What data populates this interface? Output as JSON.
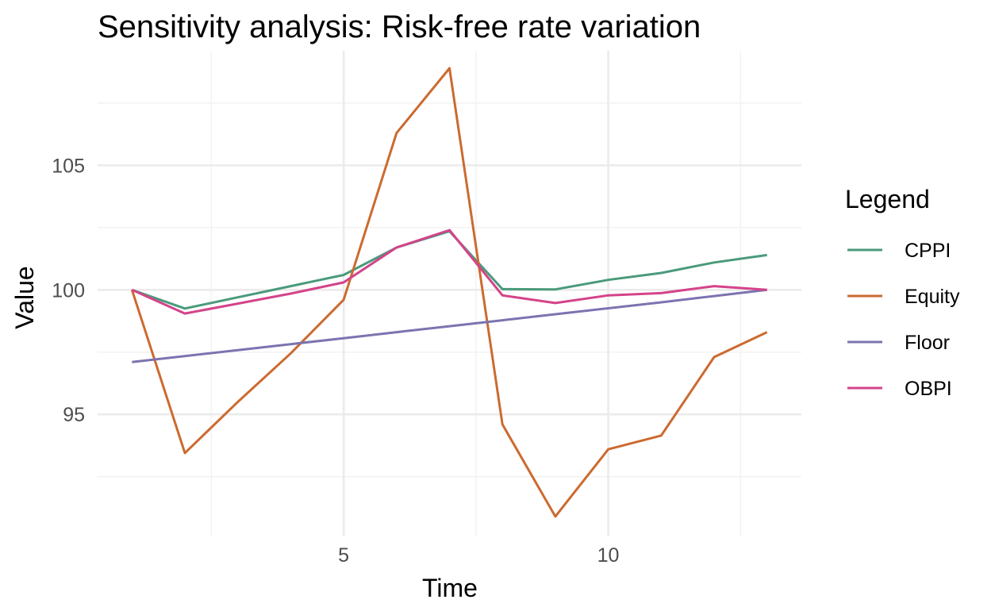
{
  "chart_data": {
    "type": "line",
    "title": "Sensitivity analysis: Risk-free rate variation",
    "xlabel": "Time",
    "ylabel": "Value",
    "xlim": [
      0.35,
      13.65
    ],
    "ylim": [
      90.1,
      109.6
    ],
    "x_ticks": [
      5,
      10
    ],
    "x_tick_labels": [
      "5",
      "10"
    ],
    "x_minor_ticks": [
      2.5,
      7.5,
      12.5
    ],
    "y_ticks": [
      95,
      100,
      105
    ],
    "y_tick_labels": [
      "95",
      "100",
      "105"
    ],
    "y_minor_ticks": [
      92.5,
      97.5,
      102.5,
      107.5
    ],
    "grid": true,
    "legend_title": "Legend",
    "legend_position": "right",
    "x": [
      1,
      2,
      3,
      4,
      5,
      6,
      7,
      8,
      9,
      10,
      11,
      12,
      13
    ],
    "series": [
      {
        "name": "CPPI",
        "color": "#4a9a7b",
        "values": [
          100.0,
          99.25,
          99.7,
          100.15,
          100.6,
          101.7,
          102.35,
          100.03,
          100.02,
          100.4,
          100.68,
          101.1,
          101.4
        ]
      },
      {
        "name": "Equity",
        "color": "#cc6a30",
        "values": [
          100.0,
          93.45,
          95.5,
          97.45,
          99.6,
          106.3,
          108.9,
          94.6,
          90.9,
          93.6,
          94.15,
          97.3,
          98.3
        ]
      },
      {
        "name": "Floor",
        "color": "#7b74b0",
        "values": [
          97.1,
          97.34,
          97.58,
          97.82,
          98.06,
          98.3,
          98.54,
          98.78,
          99.02,
          99.26,
          99.5,
          99.75,
          100.0
        ]
      },
      {
        "name": "OBPI",
        "color": "#d4438a",
        "values": [
          100.0,
          99.05,
          99.45,
          99.85,
          100.3,
          101.7,
          102.4,
          99.78,
          99.47,
          99.78,
          99.87,
          100.15,
          100.0
        ]
      }
    ]
  }
}
